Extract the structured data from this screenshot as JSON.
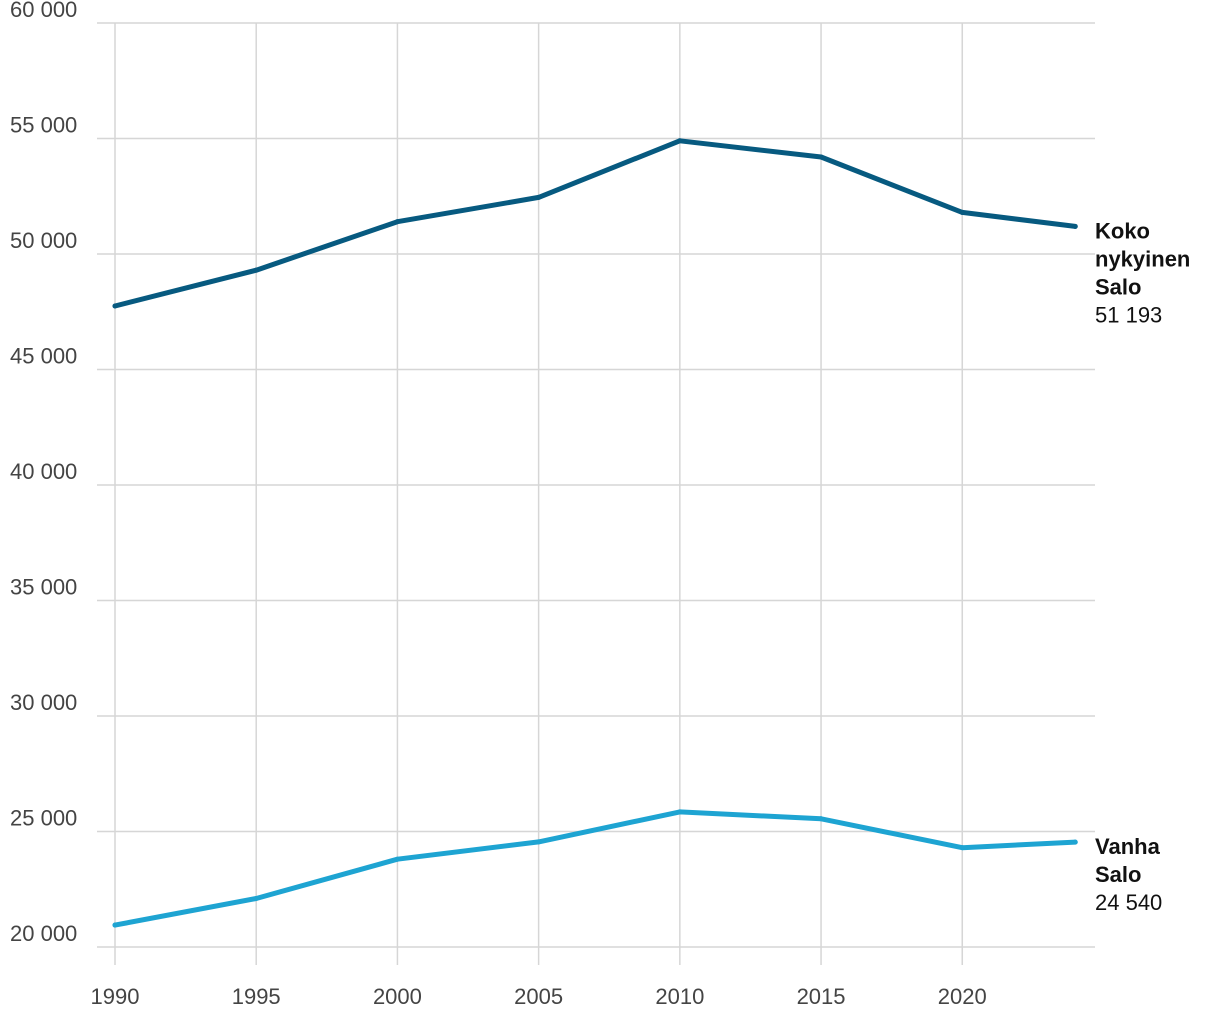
{
  "chart_data": {
    "type": "line",
    "title": "",
    "xlabel": "",
    "ylabel": "",
    "x": [
      1990,
      1995,
      2000,
      2005,
      2010,
      2015,
      2020,
      2024
    ],
    "xticks": [
      "1990",
      "1995",
      "2000",
      "2005",
      "2010",
      "2015",
      "2020"
    ],
    "xtick_values": [
      1990,
      1995,
      2000,
      2005,
      2010,
      2015,
      2020
    ],
    "xlim": [
      1990,
      2024.7
    ],
    "ylim": [
      20000,
      60000
    ],
    "yticks": [
      "20 000",
      "25 000",
      "30 000",
      "35 000",
      "40 000",
      "45 000",
      "50 000",
      "55 000",
      "60 000"
    ],
    "ytick_values": [
      20000,
      25000,
      30000,
      35000,
      40000,
      45000,
      50000,
      55000,
      60000
    ],
    "grid": true,
    "series": [
      {
        "name": "Koko nykyinen Salo",
        "label_lines": [
          "Koko",
          "nykyinen",
          "Salo"
        ],
        "last_value_label": "51 193",
        "color": "#075a80",
        "values": [
          47750,
          49300,
          51400,
          52450,
          54900,
          54200,
          51800,
          51193
        ]
      },
      {
        "name": "Vanha Salo",
        "label_lines": [
          "Vanha",
          "Salo"
        ],
        "last_value_label": "24 540",
        "color": "#1ea4d2",
        "values": [
          20950,
          22100,
          23800,
          24550,
          25850,
          25550,
          24300,
          24540
        ]
      }
    ]
  }
}
